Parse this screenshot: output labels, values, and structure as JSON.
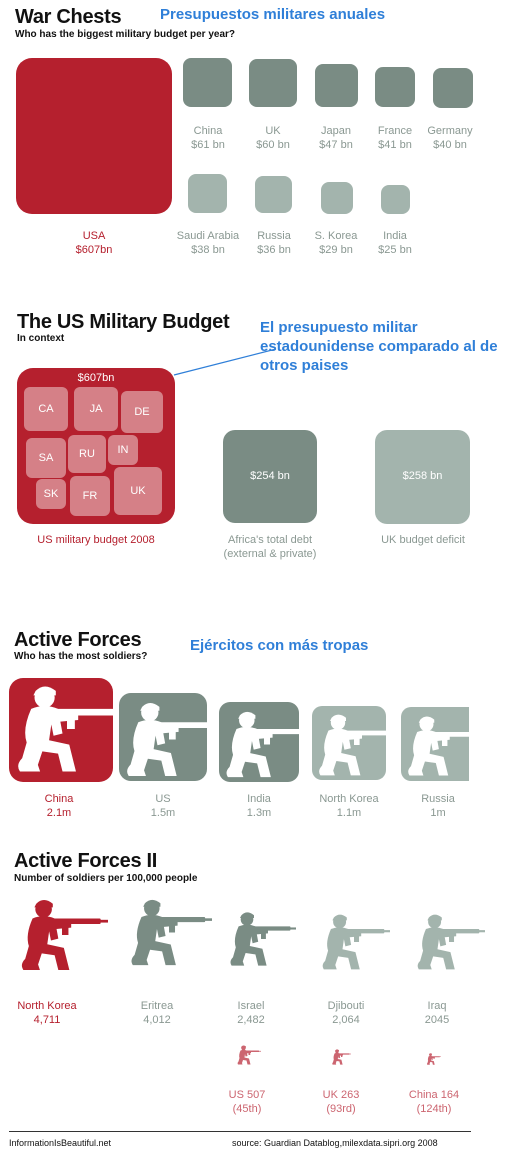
{
  "war_chests": {
    "title": "War Chests",
    "title_es": "Presupuestos militares  anuales",
    "subtitle": "Who has the biggest military budget per year?",
    "countries": [
      {
        "name": "USA",
        "value": "$607bn"
      },
      {
        "name": "China",
        "value": "$61 bn"
      },
      {
        "name": "UK",
        "value": "$60 bn"
      },
      {
        "name": "Japan",
        "value": "$47 bn"
      },
      {
        "name": "France",
        "value": "$41 bn"
      },
      {
        "name": "Germany",
        "value": "$40 bn"
      },
      {
        "name": "Saudi Arabia",
        "value": "$38 bn"
      },
      {
        "name": "Russia",
        "value": "$36 bn"
      },
      {
        "name": "S. Korea",
        "value": "$29 bn"
      },
      {
        "name": "India",
        "value": "$25 bn"
      }
    ]
  },
  "us_budget": {
    "title": "The US Military Budget",
    "title_es": "El presupuesto militar estadounidense comparado al de otros paises",
    "subtitle": "In context",
    "total": "$607bn",
    "tiles": [
      "CA",
      "JA",
      "DE",
      "SA",
      "RU",
      "IN",
      "SK",
      "FR",
      "UK"
    ],
    "label": "US military budget 2008",
    "africa_value": "$254 bn",
    "africa_label": "Africa's total debt (external & private)",
    "uk_value": "$258 bn",
    "uk_label": "UK budget deficit"
  },
  "active_forces": {
    "title": "Active Forces",
    "title_es": "Ejércitos con más tropas",
    "subtitle": "Who has the most soldiers?",
    "countries": [
      {
        "name": "China",
        "value": "2.1m"
      },
      {
        "name": "US",
        "value": "1.5m"
      },
      {
        "name": "India",
        "value": "1.3m"
      },
      {
        "name": "North Korea",
        "value": "1.1m"
      },
      {
        "name": "Russia",
        "value": "1m"
      }
    ]
  },
  "active_forces_2": {
    "title": "Active Forces II",
    "subtitle": "Number of soldiers per 100,000 people",
    "countries": [
      {
        "name": "North Korea",
        "value": "4,711"
      },
      {
        "name": "Eritrea",
        "value": "4,012"
      },
      {
        "name": "Israel",
        "value": "2,482"
      },
      {
        "name": "Djibouti",
        "value": "2,064"
      },
      {
        "name": "Iraq",
        "value": "2045"
      }
    ],
    "others": [
      {
        "name": "US",
        "value": "507",
        "rank": "(45th)"
      },
      {
        "name": "UK",
        "value": "263",
        "rank": "(93rd)"
      },
      {
        "name": "China",
        "value": "164",
        "rank": "(124th)"
      }
    ]
  },
  "footer": {
    "left": "InformationIsBeautiful.net",
    "right": "source: Guardian Datablog,milexdata.sipri.org 2008"
  },
  "colors": {
    "highlight": "#b5202e",
    "dark": "#7a8c84",
    "light": "#a3b4ad",
    "annotation": "#2f7fd8"
  },
  "chart_data": [
    {
      "type": "bar",
      "title": "War Chests",
      "subtitle": "Who has the biggest military budget per year?",
      "categories": [
        "USA",
        "China",
        "UK",
        "Japan",
        "France",
        "Germany",
        "Saudi Arabia",
        "Russia",
        "S. Korea",
        "India"
      ],
      "values": [
        607,
        61,
        60,
        47,
        41,
        40,
        38,
        36,
        29,
        25
      ],
      "unit": "$ bn"
    },
    {
      "type": "bar",
      "title": "The US Military Budget",
      "categories": [
        "US military budget 2008",
        "Africa's total debt (external & private)",
        "UK budget deficit"
      ],
      "values": [
        607,
        254,
        258
      ],
      "unit": "$ bn"
    },
    {
      "type": "bar",
      "title": "Active Forces",
      "subtitle": "Who has the most soldiers?",
      "categories": [
        "China",
        "US",
        "India",
        "North Korea",
        "Russia"
      ],
      "values": [
        2.1,
        1.5,
        1.3,
        1.1,
        1
      ],
      "unit": "m"
    },
    {
      "type": "bar",
      "title": "Active Forces II",
      "subtitle": "Number of soldiers per 100,000 people",
      "categories": [
        "North Korea",
        "Eritrea",
        "Israel",
        "Djibouti",
        "Iraq",
        "US",
        "UK",
        "China"
      ],
      "values": [
        4711,
        4012,
        2482,
        2064,
        2045,
        507,
        263,
        164
      ]
    }
  ]
}
